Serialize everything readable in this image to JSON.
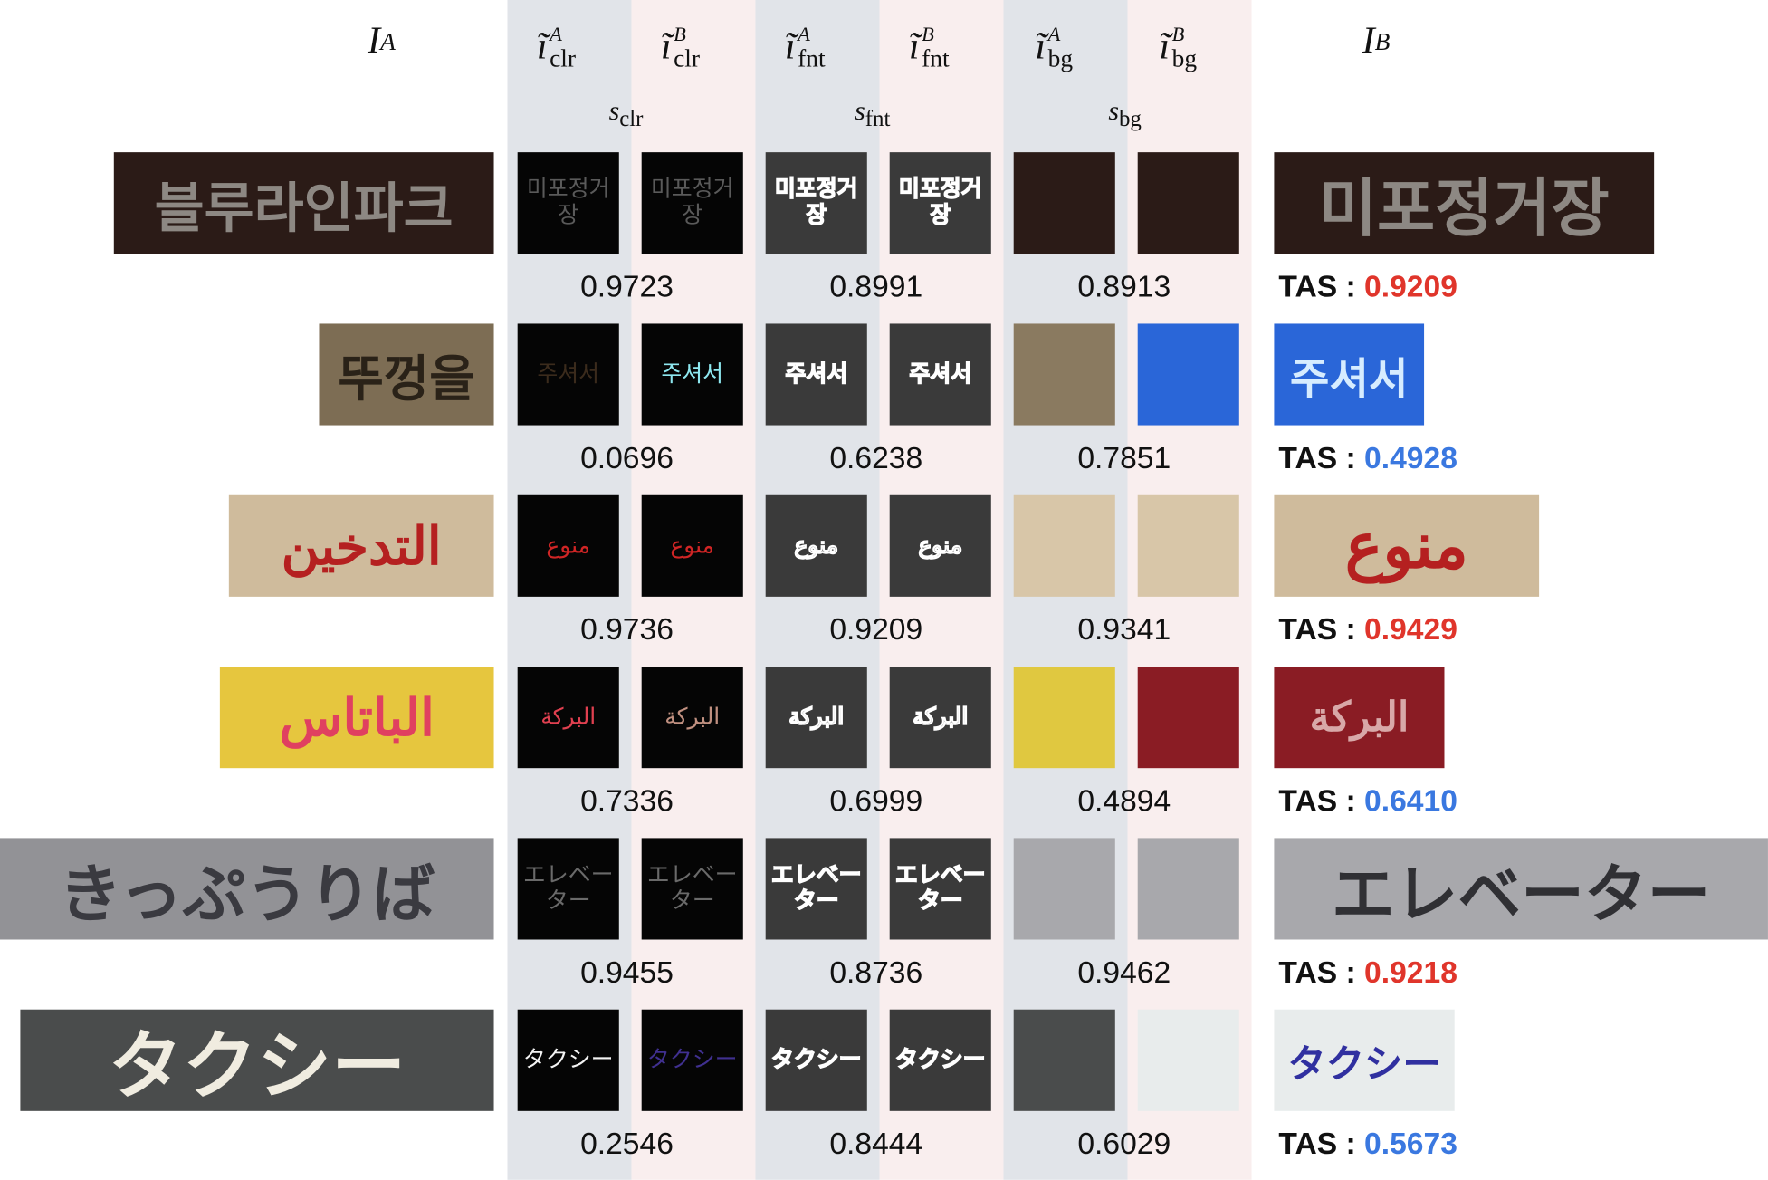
{
  "headers": {
    "ia": {
      "base": "I",
      "sub": "A"
    },
    "ib": {
      "base": "I",
      "sub": "B"
    },
    "cols": [
      {
        "base": "ĩ",
        "sup": "A",
        "sub": "clr"
      },
      {
        "base": "ĩ",
        "sup": "B",
        "sub": "clr"
      },
      {
        "base": "ĩ",
        "sup": "A",
        "sub": "fnt"
      },
      {
        "base": "ĩ",
        "sup": "B",
        "sub": "fnt"
      },
      {
        "base": "ĩ",
        "sup": "A",
        "sub": "bg"
      },
      {
        "base": "ĩ",
        "sup": "B",
        "sub": "bg"
      }
    ],
    "scores": [
      {
        "base": "s",
        "sub": "clr"
      },
      {
        "base": "s",
        "sub": "fnt"
      },
      {
        "base": "s",
        "sub": "bg"
      }
    ]
  },
  "tas_label": "TAS : ",
  "colors": {
    "high": "#e0352b",
    "low": "#3a78e0",
    "band_a": "#e1e4e9",
    "band_b": "#f9eeee"
  },
  "rows": [
    {
      "ia_text": "블루라인파크",
      "ib_text": "미포정거장",
      "s_clr": "0.9723",
      "s_fnt": "0.8991",
      "s_bg": "0.8913",
      "tas": "0.9209",
      "tas_level": "high"
    },
    {
      "ia_text": "뚜껑을",
      "ib_text": "주셔서",
      "s_clr": "0.0696",
      "s_fnt": "0.6238",
      "s_bg": "0.7851",
      "tas": "0.4928",
      "tas_level": "low"
    },
    {
      "ia_text": "التدخين",
      "ib_text": "منوع",
      "s_clr": "0.9736",
      "s_fnt": "0.9209",
      "s_bg": "0.9341",
      "tas": "0.9429",
      "tas_level": "high"
    },
    {
      "ia_text": "الباتاس",
      "ib_text": "البركة",
      "s_clr": "0.7336",
      "s_fnt": "0.6999",
      "s_bg": "0.4894",
      "tas": "0.6410",
      "tas_level": "low"
    },
    {
      "ia_text": "きっぷうりば",
      "ib_text": "エレベーター",
      "s_clr": "0.9455",
      "s_fnt": "0.8736",
      "s_bg": "0.9462",
      "tas": "0.9218",
      "tas_level": "high"
    },
    {
      "ia_text": "タクシー",
      "ib_text": "タクシー",
      "s_clr": "0.2546",
      "s_fnt": "0.8444",
      "s_bg": "0.6029",
      "tas": "0.5673",
      "tas_level": "low"
    }
  ]
}
